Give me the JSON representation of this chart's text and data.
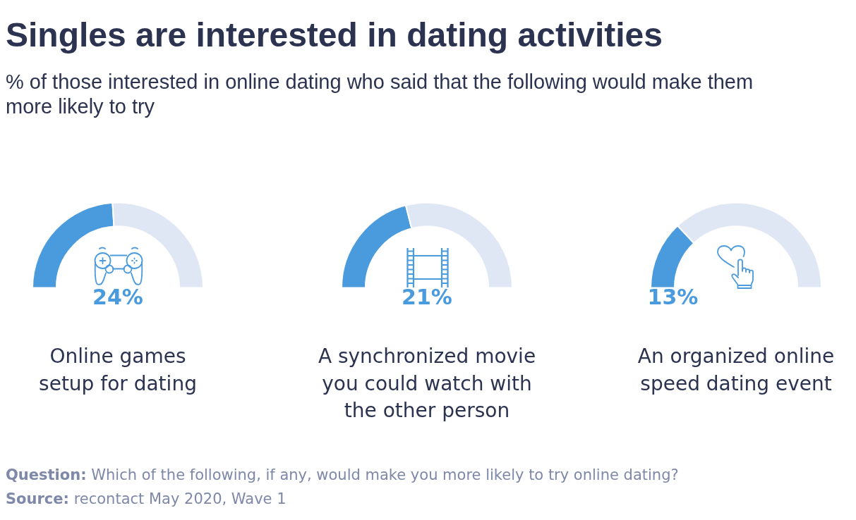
{
  "chart_data": [
    {
      "type": "other",
      "title": "Singles are interested in dating activities",
      "subtitle": "% of those interested in online dating who said that the following would make them more likely to try",
      "annotations": [
        "Question: Which of the following, if any, would make you more likely to try online dating?",
        "Source: recontact May 2020, Wave 1"
      ]
    },
    {
      "type": "donut",
      "title": "Online games setup for dating",
      "categories": [
        null,
        null
      ],
      "values": [
        24,
        26
      ],
      "colors": [
        "#4a9ade",
        "#e0e7f4"
      ],
      "value_labels": [
        "24%",
        null
      ]
    },
    {
      "type": "donut",
      "title": "A synchronized movie you could watch with the other person",
      "categories": [
        null,
        null
      ],
      "values": [
        21,
        29
      ],
      "colors": [
        "#4a9ade",
        "#e0e7f4"
      ],
      "value_labels": [
        "21%",
        null
      ]
    },
    {
      "type": "donut",
      "title": "An organized online speed dating event",
      "categories": [
        null,
        null
      ],
      "values": [
        13,
        37
      ],
      "colors": [
        "#4a9ade",
        "#e0e7f4"
      ],
      "value_labels": [
        "13%",
        null
      ]
    }
  ]
}
